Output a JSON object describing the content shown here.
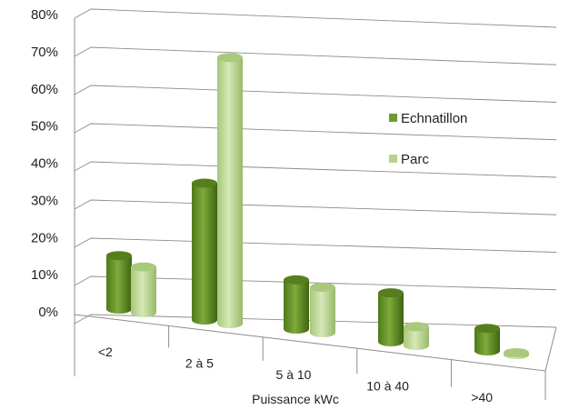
{
  "chart_data": {
    "type": "bar",
    "title": "",
    "xlabel": "Puissance kWc",
    "ylabel": "",
    "ylim": [
      0,
      80
    ],
    "yticks": [
      "0%",
      "10%",
      "20%",
      "30%",
      "40%",
      "50%",
      "60%",
      "70%",
      "80%"
    ],
    "categories": [
      "<2",
      "2 à 5",
      "5 à 10",
      "10 à 40",
      ">40"
    ],
    "series": [
      {
        "name": "Echnatillon",
        "values": [
          14,
          36,
          13,
          13,
          6
        ],
        "color": "#6e9a2e"
      },
      {
        "name": "Parc",
        "values": [
          12,
          70,
          12,
          5,
          0.5
        ],
        "color": "#b7d38a"
      }
    ],
    "grid": true,
    "legend": "right-center",
    "style": "3d-cylinder"
  }
}
